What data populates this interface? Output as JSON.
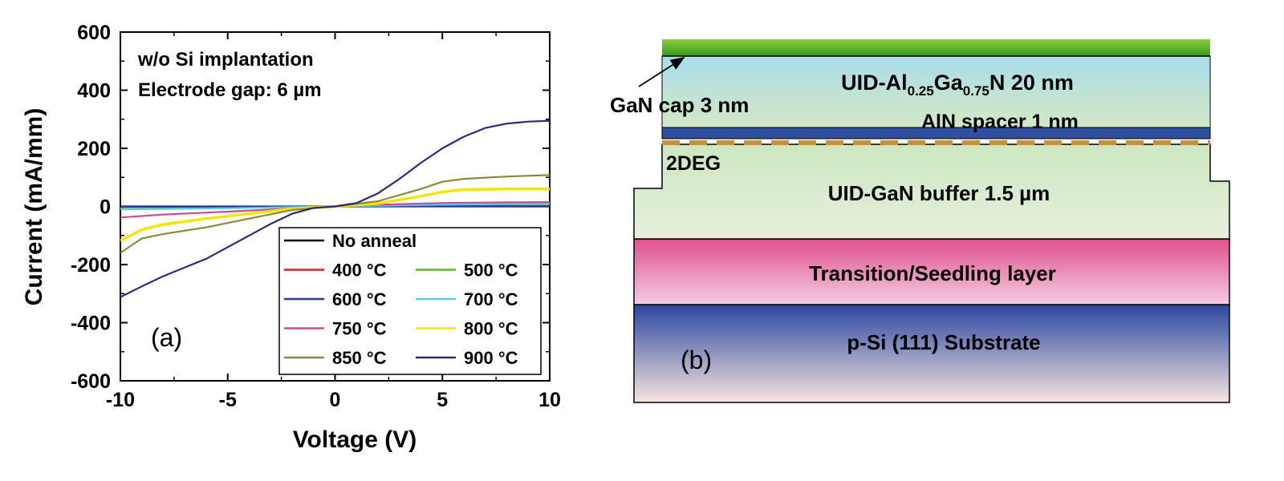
{
  "chart_data": [
    {
      "panel": "(a)",
      "type": "line",
      "xlabel": "Voltage (V)",
      "ylabel": "Current (mA/mm)",
      "xlim": [
        -10,
        10
      ],
      "ylim": [
        -600,
        600
      ],
      "xticks": [
        -10,
        -5,
        0,
        5,
        10
      ],
      "yticks": [
        -600,
        -400,
        -200,
        0,
        200,
        400,
        600
      ],
      "annotations": [
        "w/o Si implantation",
        "Electrode gap: 6 µm"
      ],
      "legend_placement": "bottom-right",
      "grid": false,
      "series": [
        {
          "name": "No anneal",
          "color": "#000000",
          "x": [
            -10,
            0,
            10
          ],
          "y": [
            0,
            0,
            0
          ]
        },
        {
          "name": "400 °C",
          "color": "#d42020",
          "x": [
            -10,
            0,
            10
          ],
          "y": [
            -2,
            0,
            2
          ]
        },
        {
          "name": "500 °C",
          "color": "#5cb82c",
          "x": [
            -10,
            0,
            10
          ],
          "y": [
            -3,
            0,
            3
          ]
        },
        {
          "name": "600 °C",
          "color": "#2a3a9a",
          "x": [
            -10,
            0,
            10
          ],
          "y": [
            -1,
            0,
            1
          ]
        },
        {
          "name": "700 °C",
          "color": "#5ac8e6",
          "x": [
            -10,
            -5,
            0,
            5,
            10
          ],
          "y": [
            -10,
            -6,
            0,
            6,
            10
          ]
        },
        {
          "name": "750 °C",
          "color": "#c0509a",
          "x": [
            -10,
            -8,
            -5,
            -2,
            0,
            2,
            5,
            8,
            10
          ],
          "y": [
            -38,
            -28,
            -18,
            -7,
            0,
            6,
            12,
            14,
            15
          ]
        },
        {
          "name": "800 °C",
          "color": "#f5e40a",
          "x": [
            -10,
            -9,
            -8,
            -6,
            -4,
            -2,
            0,
            2,
            4,
            5,
            6,
            8,
            10
          ],
          "y": [
            -118,
            -80,
            -62,
            -42,
            -25,
            -8,
            0,
            10,
            35,
            50,
            58,
            60,
            60
          ]
        },
        {
          "name": "850 °C",
          "color": "#8a8a3a",
          "x": [
            -10,
            -9,
            -8,
            -6,
            -4,
            -2,
            0,
            2,
            4,
            5,
            6,
            8,
            10
          ],
          "y": [
            -160,
            -110,
            -95,
            -72,
            -42,
            -12,
            0,
            18,
            60,
            85,
            95,
            103,
            108
          ]
        },
        {
          "name": "900 °C",
          "color": "#2e2a7a",
          "x": [
            -10,
            -9,
            -8,
            -7,
            -6,
            -5,
            -4,
            -3,
            -2,
            -1,
            0,
            1,
            2,
            3,
            4,
            5,
            6,
            7,
            8,
            9,
            10
          ],
          "y": [
            -312,
            -275,
            -240,
            -210,
            -180,
            -140,
            -100,
            -60,
            -25,
            -5,
            0,
            12,
            45,
            95,
            150,
            200,
            240,
            270,
            285,
            292,
            295
          ]
        }
      ]
    },
    {
      "panel": "(b)",
      "type": "diagram",
      "layers": [
        {
          "label": "GaN cap 3 nm",
          "color_top": "#8acc3c",
          "color_bottom": "#3a9a20"
        },
        {
          "label": "UID-Al",
          "sub1": "0.25",
          "mid": "Ga",
          "sub2": "0.75",
          "tail": "N 20 nm",
          "color_top": "#a9dcea",
          "color_bottom": "#d3e8c6"
        },
        {
          "label": "AlN spacer 1 nm",
          "color": "#2e4fa0"
        },
        {
          "label": "2DEG",
          "color": "#c7903a"
        },
        {
          "label": "UID-GaN buffer 1.5 µm",
          "color_top": "#cde6c0",
          "color_bottom": "#e6f0dc"
        },
        {
          "label": "Transition/Seedling layer",
          "color_top": "#e0508e",
          "color_bottom": "#f4cde0"
        },
        {
          "label": "p-Si (111) Substrate",
          "color_top": "#2a47a0",
          "color_bottom": "#f6e4e0"
        }
      ]
    }
  ]
}
